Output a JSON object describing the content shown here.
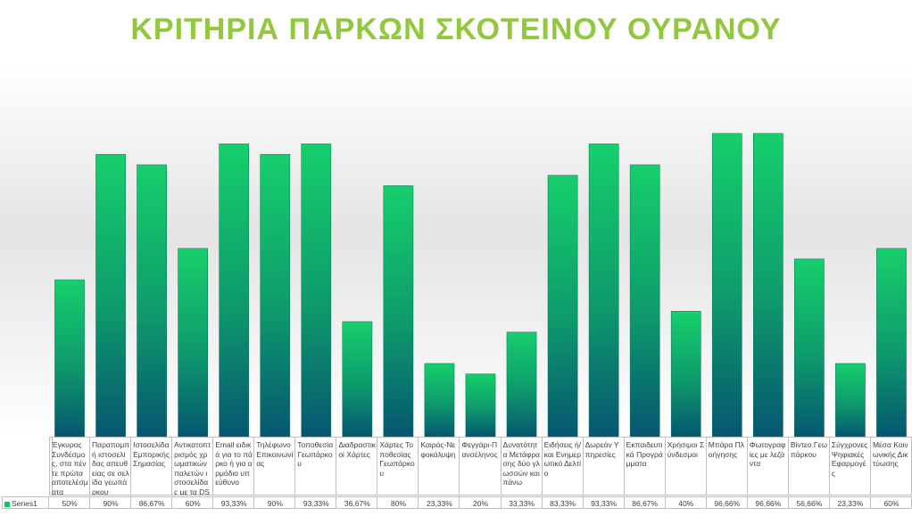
{
  "chart_data": {
    "type": "bar",
    "title": "ΚΡΙΤΗΡΙΑ ΠΑΡΚΩΝ ΣΚΟΤΕΙΝΟΥ ΟΥΡΑΝΟΥ",
    "categories": [
      "Έγκυρος Συνδέσμος, στα πέντε πρώτα αποτελέσματα",
      "Παραπομπή ιστοσελίδας απευθείας σε σελίδα γεωπάρκου",
      "Ιστοσελίδα Εμπορικής Σημασίας",
      "Αντικατοπτρισμός χρωματικών παλετών ιστοσελίδας με τα DSP",
      "Email ειδικά για το πάρκο ή για αρμόδιο υπεύθυνο",
      "Τηλέφωνο Επικοινωνίας",
      "Τοποθεσία Γεωπάρκου",
      "Διαδραστικοί Χάρτες",
      "Χάρτες Τοποθεσίας Γεωπάρκου",
      "Καιρός-Νεφοκάλυψη",
      "Φεγγάρι-Πανσέληνος",
      "Δυνατότητα Μετάφρασης δύο γλωσσών και πάνω",
      "Ειδήσεις ή/και Ενημερωτικό Δελτίο",
      "Δωρεάν Υπηρεσίες",
      "Εκπαιδευτικά Προγράμματα",
      "Χρήσιμοι Σύνδεσμοι",
      "Μπάρα Πλοήγησης",
      "Φωτογραφίες με λεζάντα",
      "Βίντεο Γεωπάρκου",
      "Σύγχρονες Ψηφιακές Εφαρμογές",
      "Μέσα Κοινωνικής Δικτύωσης"
    ],
    "series": [
      {
        "name": "Series1",
        "color": "#13c26a",
        "values": [
          50,
          90,
          86.67,
          60,
          93.33,
          90,
          93.33,
          36.67,
          80,
          23.33,
          20,
          33.33,
          83.33,
          93.33,
          86.67,
          40,
          96.66,
          96.66,
          56.66,
          23.33,
          60
        ],
        "value_labels": [
          "50%",
          "90%",
          "86,67%",
          "60%",
          "93,33%",
          "90%",
          "93,33%",
          "36,67%",
          "80%",
          "23,33%",
          "20%",
          "33,33%",
          "83,33%",
          "93,33%",
          "86,67%",
          "40%",
          "96,66%",
          "96,66%",
          "56,66%",
          "23,33%",
          "60%"
        ]
      }
    ],
    "ylim": [
      0,
      100
    ]
  }
}
